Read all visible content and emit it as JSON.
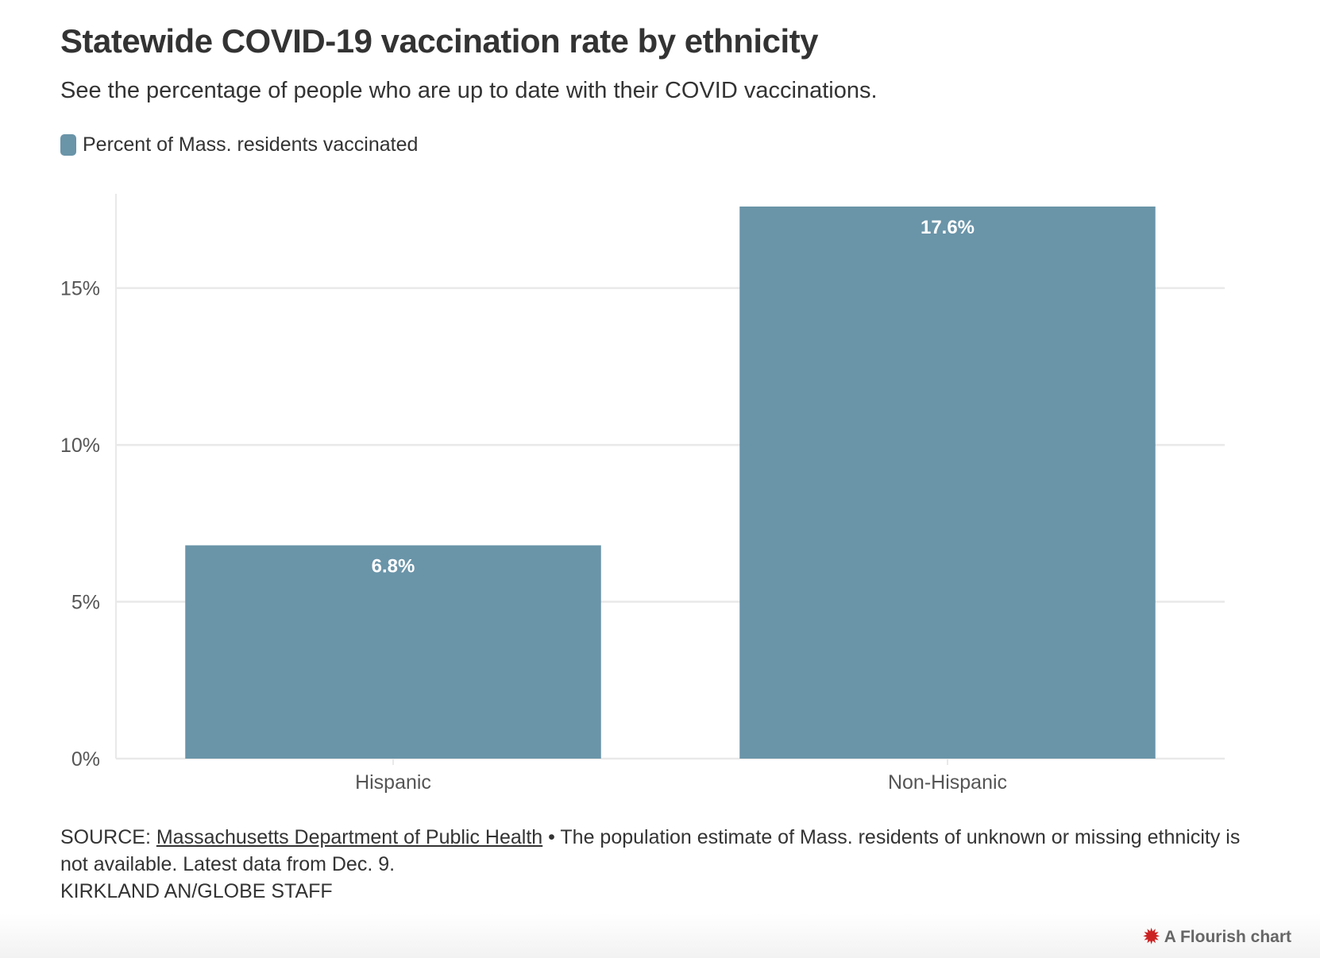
{
  "header": {
    "title": "Statewide COVID-19 vaccination rate by ethnicity",
    "subtitle": "See the percentage of people who are up to date with their COVID vaccinations."
  },
  "legend": {
    "label": "Percent of Mass. residents vaccinated"
  },
  "chart_data": {
    "type": "bar",
    "categories": [
      "Hispanic",
      "Non-Hispanic"
    ],
    "series": [
      {
        "name": "Percent of Mass. residents vaccinated",
        "values": [
          6.8,
          17.6
        ],
        "data_labels": [
          "6.8%",
          "17.6%"
        ],
        "color": "#6a94a8"
      }
    ],
    "y_ticks": [
      0,
      5,
      10,
      15
    ],
    "y_tick_labels": [
      "0%",
      "5%",
      "10%",
      "15%"
    ],
    "ylim": [
      0,
      17.6
    ],
    "grid": true,
    "legend_position": "top-left"
  },
  "footer": {
    "source_prefix": "SOURCE: ",
    "source_link": "Massachusetts Department of Public Health",
    "note": " • The population estimate of Mass. residents of unknown or missing ethnicity is not available. Latest data from Dec. 9.",
    "credit": "KIRKLAND AN/GLOBE STAFF"
  },
  "branding": {
    "label": "A Flourish chart",
    "icon": "flourish-icon"
  },
  "colors": {
    "bar": "#6a94a8",
    "grid": "#e9e9e9",
    "text": "#333333"
  }
}
